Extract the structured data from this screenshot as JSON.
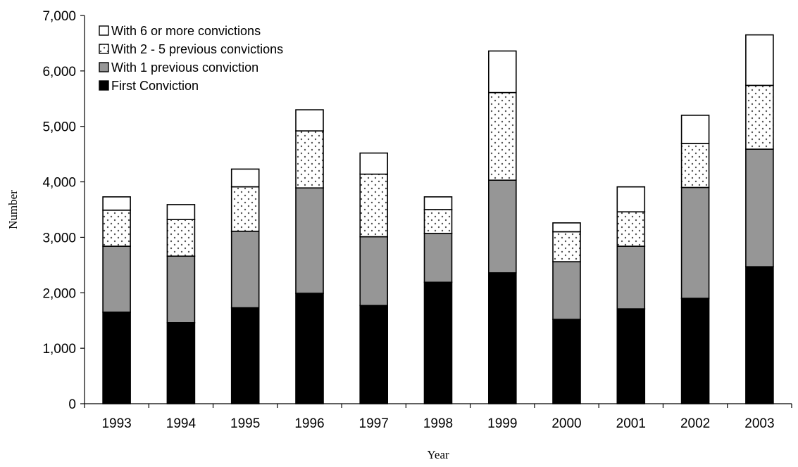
{
  "chart_data": {
    "type": "bar",
    "stacked": true,
    "title": "",
    "xlabel": "Year",
    "ylabel": "Number",
    "ylim": [
      0,
      7000
    ],
    "yticks": [
      0,
      1000,
      2000,
      3000,
      4000,
      5000,
      6000,
      7000
    ],
    "ytick_labels": [
      "0",
      "1,000",
      "2,000",
      "3,000",
      "4,000",
      "5,000",
      "6,000",
      "7,000"
    ],
    "grid": false,
    "legend_position": "top-left",
    "categories": [
      "1993",
      "1994",
      "1995",
      "1996",
      "1997",
      "1998",
      "1999",
      "2000",
      "2001",
      "2002",
      "2003"
    ],
    "series": [
      {
        "name": "First Conviction",
        "fill": "solid",
        "color": "#000000",
        "values": [
          1650,
          1460,
          1730,
          1990,
          1770,
          2190,
          2360,
          1520,
          1710,
          1900,
          2470
        ]
      },
      {
        "name": "With 1 previous conviction",
        "fill": "solid",
        "color": "#969696",
        "values": [
          1190,
          1200,
          1380,
          1900,
          1240,
          880,
          1670,
          1040,
          1130,
          2000,
          2120
        ]
      },
      {
        "name": "With 2 - 5 previous convictions",
        "fill": "dotted",
        "color": "#ffffff",
        "values": [
          650,
          660,
          800,
          1030,
          1130,
          430,
          1580,
          540,
          620,
          790,
          1150
        ]
      },
      {
        "name": "With 6 or more convictions",
        "fill": "solid",
        "color": "#ffffff",
        "values": [
          240,
          270,
          320,
          380,
          380,
          230,
          750,
          160,
          450,
          510,
          910
        ]
      }
    ],
    "legend_order": [
      "With 6 or more convictions",
      "With 2 - 5 previous convictions",
      "With 1 previous conviction",
      "First Conviction"
    ]
  }
}
